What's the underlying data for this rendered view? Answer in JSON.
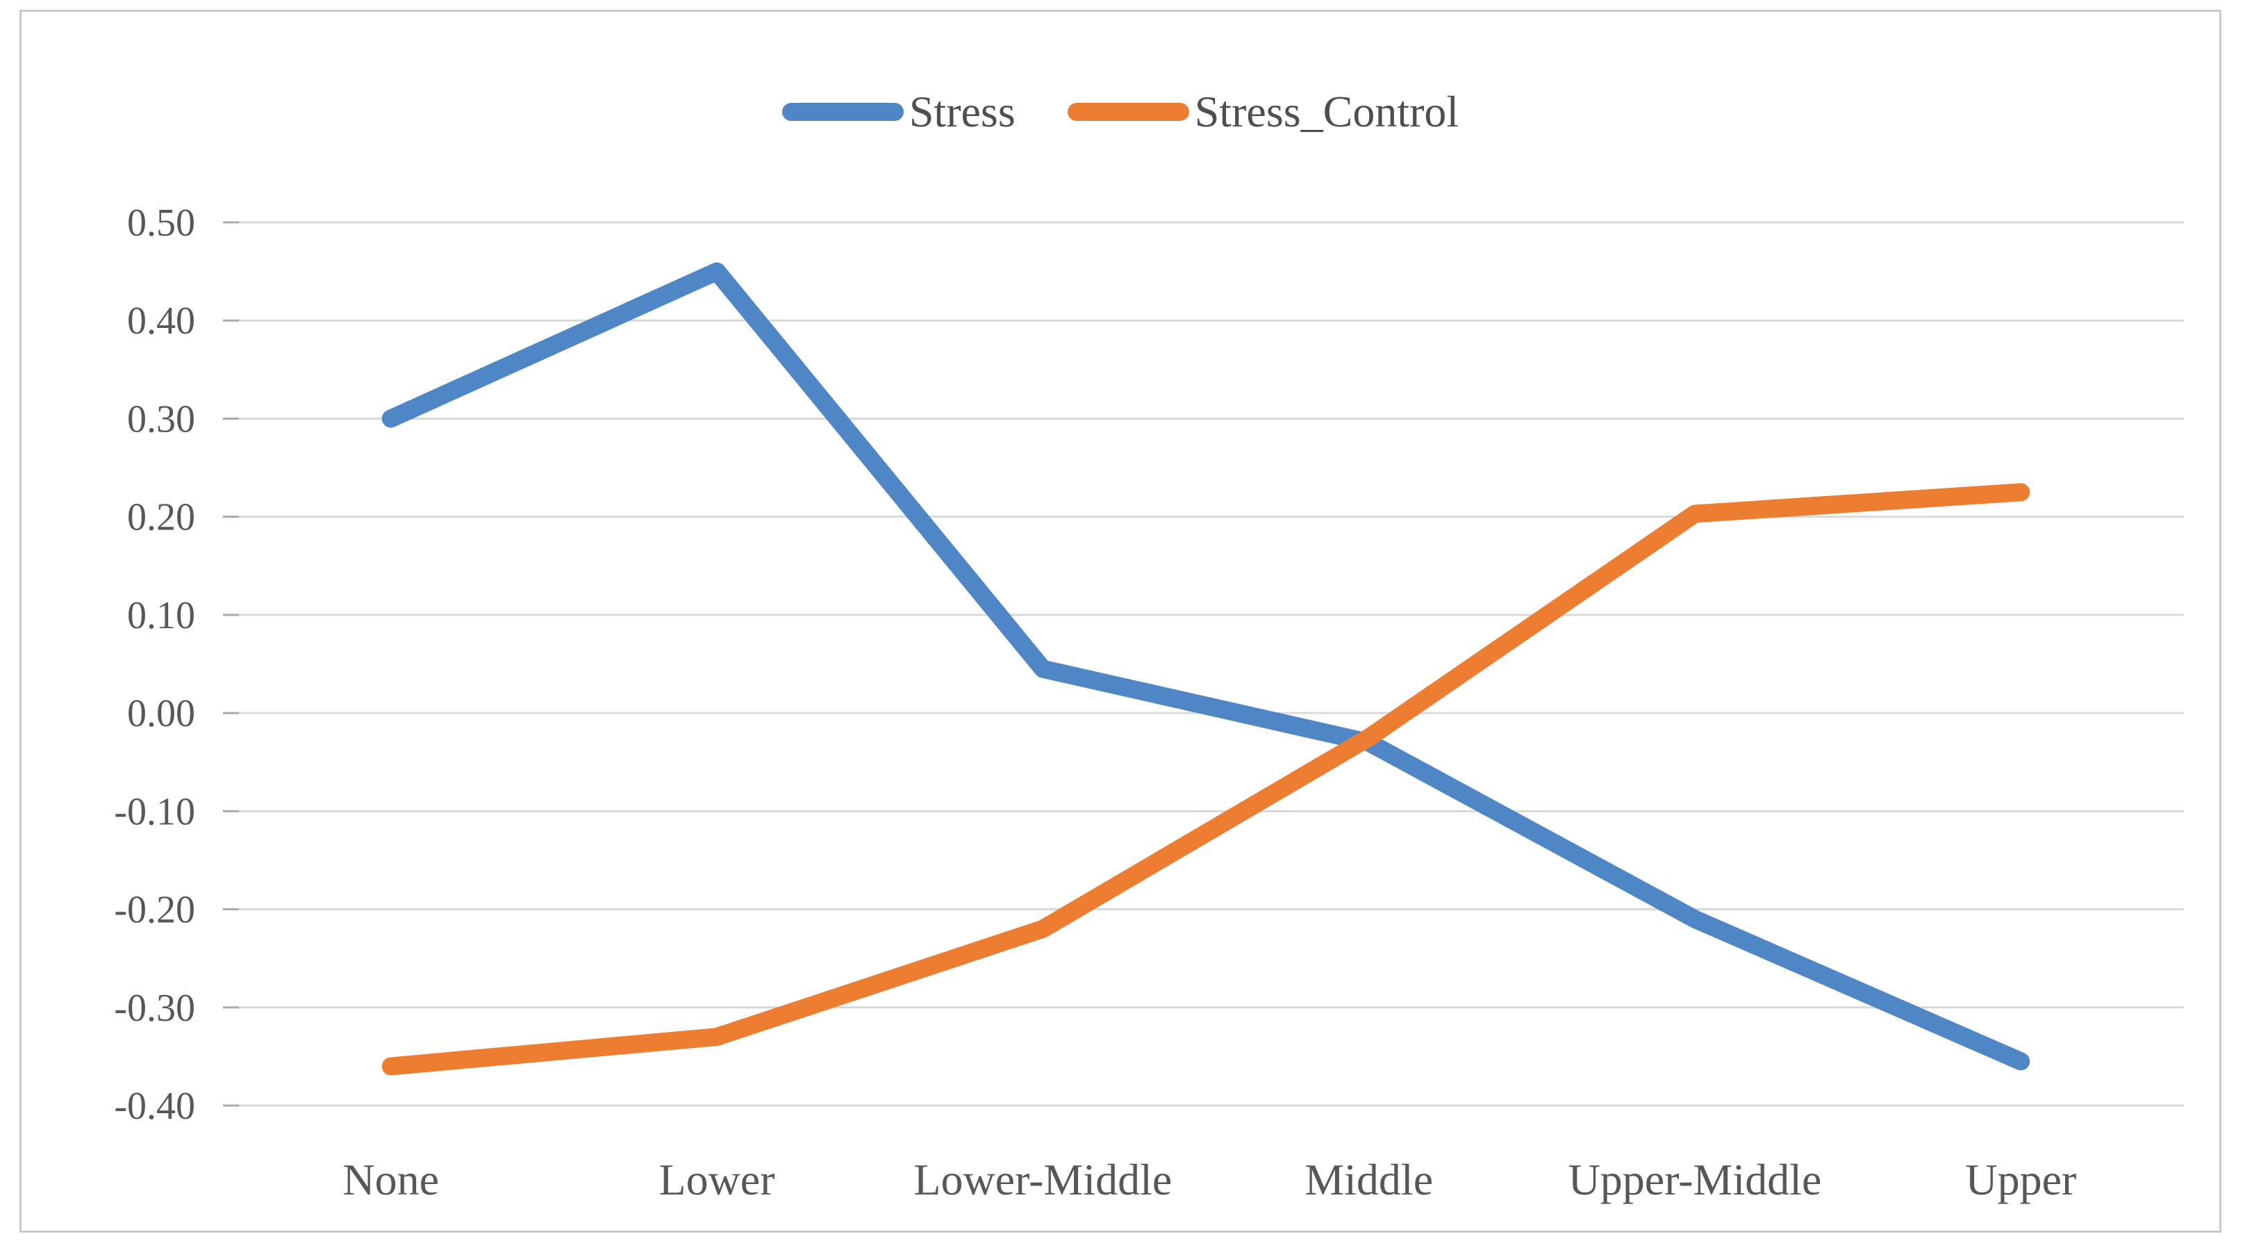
{
  "chart_data": {
    "type": "line",
    "title": "",
    "categories": [
      "None",
      "Lower",
      "Lower-Middle",
      "Middle",
      "Upper-Middle",
      "Upper"
    ],
    "series": [
      {
        "name": "Stress",
        "color": "#4e86c6",
        "values": [
          0.3,
          0.45,
          0.045,
          -0.03,
          -0.21,
          -0.355
        ]
      },
      {
        "name": "Stress_Control",
        "color": "#ed7d31",
        "values": [
          -0.36,
          -0.33,
          -0.22,
          -0.025,
          0.203,
          0.225
        ]
      }
    ],
    "y_axis": {
      "min": -0.4,
      "max": 0.5,
      "step": 0.1,
      "tick_labels": [
        "0.50",
        "0.40",
        "0.30",
        "0.20",
        "0.10",
        "0.00",
        "-0.10",
        "-0.20",
        "-0.30",
        "-0.40"
      ]
    },
    "x_axis": {
      "label": ""
    },
    "legend_position": "top",
    "grid": true,
    "gridline_color": "#d9d9d9",
    "tick_color": "#ababab",
    "label_color": "#575757",
    "background": "#ffffff",
    "border_color": "#c9c9c9"
  }
}
